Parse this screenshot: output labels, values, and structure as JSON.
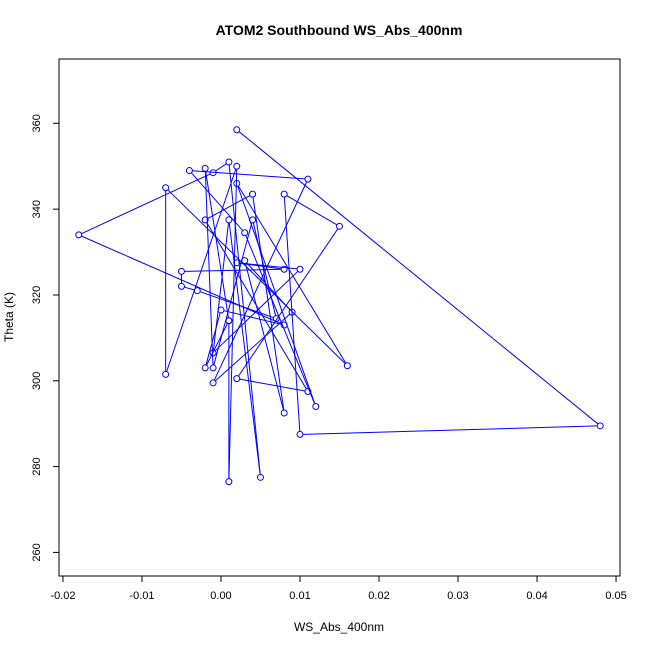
{
  "chart_data": {
    "type": "scatter",
    "title": "ATOM2 Southbound WS_Abs_400nm",
    "xlabel": "WS_Abs_400nm",
    "ylabel": "Theta (K)",
    "xlim": [
      -0.0205,
      0.0505
    ],
    "ylim": [
      254.5,
      375
    ],
    "xticks": [
      -0.02,
      -0.01,
      0.0,
      0.01,
      0.02,
      0.03,
      0.04,
      0.05
    ],
    "xtick_labels": [
      "-0.02",
      "-0.01",
      "0.00",
      "0.01",
      "0.02",
      "0.03",
      "0.04",
      "0.05"
    ],
    "yticks": [
      260,
      280,
      300,
      320,
      340,
      360
    ],
    "ytick_labels": [
      "260",
      "280",
      "300",
      "320",
      "340",
      "360"
    ],
    "grid": false,
    "marker": "open-circle",
    "connect_points": true,
    "color": "#0000ff",
    "series": [
      {
        "points": [
          [
            0.002,
            358.5
          ],
          [
            0.048,
            289.5
          ],
          [
            0.01,
            287.5
          ],
          [
            0.008,
            343.5
          ],
          [
            0.015,
            336.0
          ],
          [
            0.002,
            300.5
          ],
          [
            0.011,
            297.5
          ],
          [
            -0.002,
            337.5
          ],
          [
            0.004,
            343.5
          ],
          [
            0.008,
            292.5
          ],
          [
            0.003,
            328.0
          ],
          [
            0.009,
            316.0
          ],
          [
            -0.001,
            299.5
          ],
          [
            0.011,
            347.0
          ],
          [
            -0.004,
            349.0
          ],
          [
            0.003,
            334.5
          ],
          [
            0.012,
            294.0
          ],
          [
            0.002,
            346.0
          ],
          [
            0.016,
            303.5
          ],
          [
            -0.007,
            345.0
          ],
          [
            -0.007,
            301.5
          ],
          [
            0.002,
            350.0
          ],
          [
            0.001,
            276.5
          ],
          [
            0.001,
            314.0
          ],
          [
            -0.002,
            349.5
          ],
          [
            -0.001,
            303.0
          ],
          [
            0.004,
            337.5
          ],
          [
            0.007,
            314.5
          ],
          [
            -0.003,
            321.0
          ],
          [
            -0.005,
            322.0
          ],
          [
            -0.005,
            325.5
          ],
          [
            0.008,
            326.0
          ],
          [
            0.002,
            327.5
          ],
          [
            0.01,
            326.0
          ],
          [
            -0.001,
            306.5
          ],
          [
            0.001,
            337.5
          ],
          [
            0.005,
            277.5
          ],
          [
            0.001,
            351.0
          ],
          [
            -0.001,
            348.5
          ],
          [
            -0.018,
            334.0
          ],
          [
            0.008,
            313.0
          ],
          [
            0.0,
            316.5
          ],
          [
            -0.002,
            303.0
          ],
          [
            0.001,
            314.0
          ]
        ]
      }
    ]
  }
}
